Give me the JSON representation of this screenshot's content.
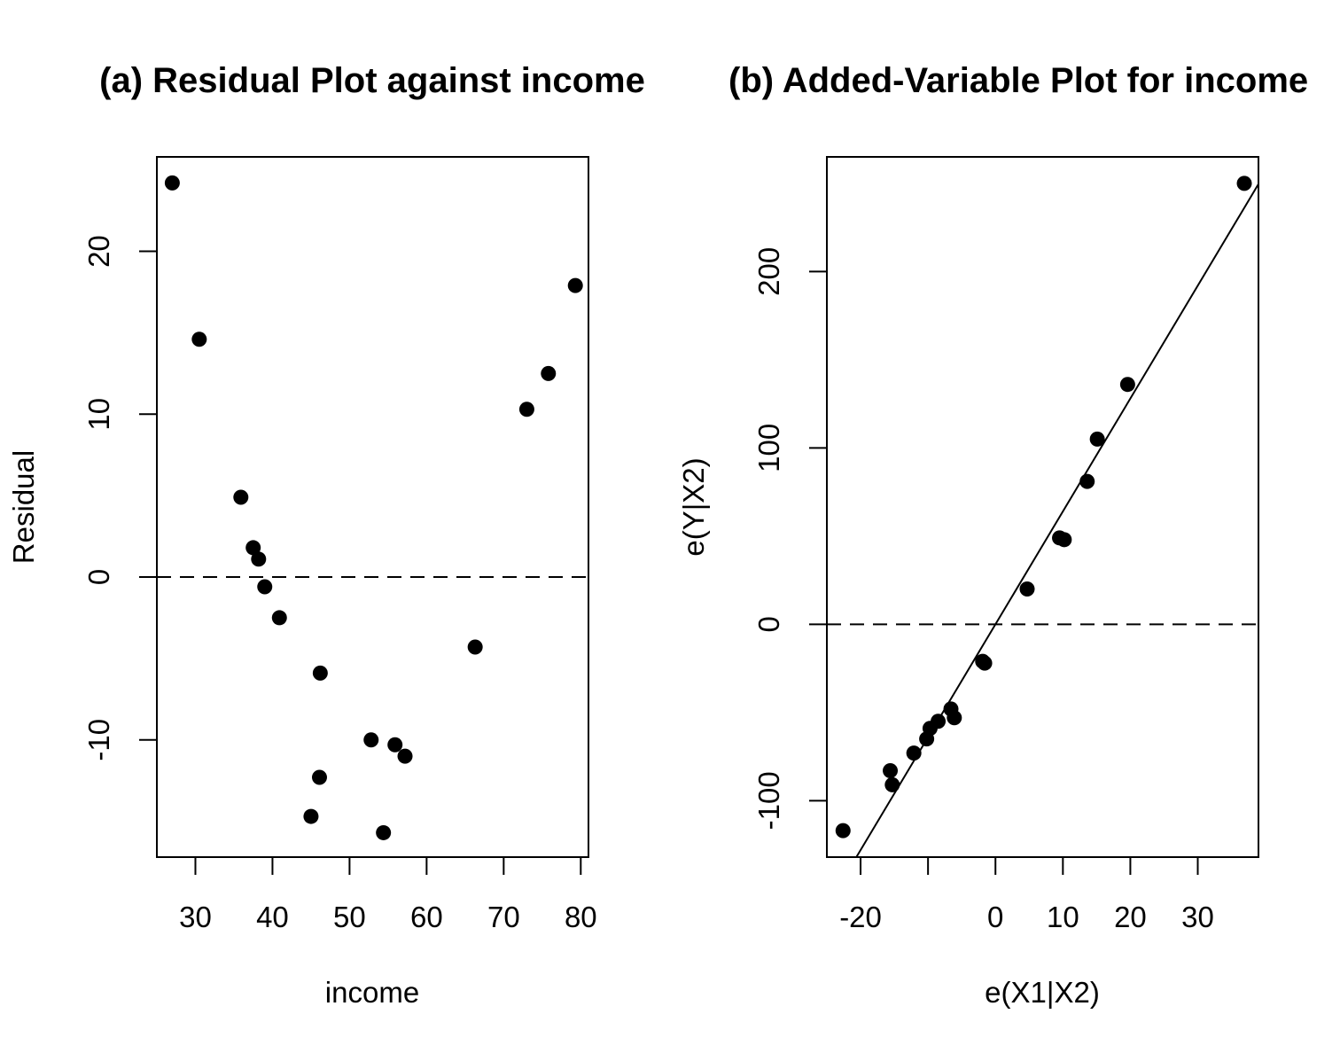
{
  "chart_data": [
    {
      "type": "scatter",
      "title": "(a) Residual Plot against income",
      "xlabel": "income",
      "ylabel": "Residual",
      "xlim": [
        25,
        81
      ],
      "ylim": [
        -17.2,
        25.8
      ],
      "xticks": [
        30,
        40,
        50,
        60,
        70,
        80
      ],
      "xtick_labels": [
        "30",
        "40",
        "50",
        "60",
        "70",
        "80"
      ],
      "yticks": [
        -10,
        0,
        10,
        20
      ],
      "ytick_labels": [
        "-10",
        "0",
        "10",
        "20"
      ],
      "grid": false,
      "reference_line": {
        "y": 0,
        "style": "dashed"
      },
      "points": [
        {
          "x": 27.0,
          "y": 24.2
        },
        {
          "x": 30.5,
          "y": 14.6
        },
        {
          "x": 35.9,
          "y": 4.9
        },
        {
          "x": 37.5,
          "y": 1.8
        },
        {
          "x": 38.2,
          "y": 1.1
        },
        {
          "x": 39.0,
          "y": -0.6
        },
        {
          "x": 40.9,
          "y": -2.5
        },
        {
          "x": 46.2,
          "y": -5.9
        },
        {
          "x": 46.1,
          "y": -12.3
        },
        {
          "x": 45.0,
          "y": -14.7
        },
        {
          "x": 52.8,
          "y": -10.0
        },
        {
          "x": 55.9,
          "y": -10.3
        },
        {
          "x": 57.2,
          "y": -11.0
        },
        {
          "x": 54.4,
          "y": -15.7
        },
        {
          "x": 66.3,
          "y": -4.3
        },
        {
          "x": 73.0,
          "y": 10.3
        },
        {
          "x": 75.8,
          "y": 12.5
        },
        {
          "x": 79.3,
          "y": 17.9
        }
      ]
    },
    {
      "type": "scatter",
      "title": "(b) Added-Variable Plot for income",
      "xlabel": "e(X1|X2)",
      "ylabel": "e(Y|X2)",
      "xlim": [
        -25,
        39
      ],
      "ylim": [
        -132,
        265
      ],
      "xticks": [
        -20,
        -10,
        0,
        10,
        20,
        30
      ],
      "xtick_labels": [
        "-20",
        "",
        "0",
        "10",
        "20",
        "30"
      ],
      "yticks": [
        -100,
        0,
        100,
        200
      ],
      "ytick_labels": [
        "-100",
        "0",
        "100",
        "200"
      ],
      "grid": false,
      "reference_line": {
        "y": 0,
        "style": "dashed"
      },
      "fit_line": {
        "slope": 6.4,
        "intercept": 0
      },
      "points": [
        {
          "x": -22.6,
          "y": -117
        },
        {
          "x": -15.6,
          "y": -83
        },
        {
          "x": -15.3,
          "y": -91
        },
        {
          "x": -12.1,
          "y": -73
        },
        {
          "x": -10.2,
          "y": -65
        },
        {
          "x": -9.7,
          "y": -59
        },
        {
          "x": -8.5,
          "y": -55
        },
        {
          "x": -6.6,
          "y": -48
        },
        {
          "x": -6.1,
          "y": -53
        },
        {
          "x": -1.9,
          "y": -21
        },
        {
          "x": -1.6,
          "y": -22
        },
        {
          "x": 4.7,
          "y": 20
        },
        {
          "x": 9.5,
          "y": 49
        },
        {
          "x": 10.2,
          "y": 48
        },
        {
          "x": 13.6,
          "y": 81
        },
        {
          "x": 15.1,
          "y": 105
        },
        {
          "x": 19.6,
          "y": 136
        },
        {
          "x": 36.9,
          "y": 250
        }
      ]
    }
  ]
}
